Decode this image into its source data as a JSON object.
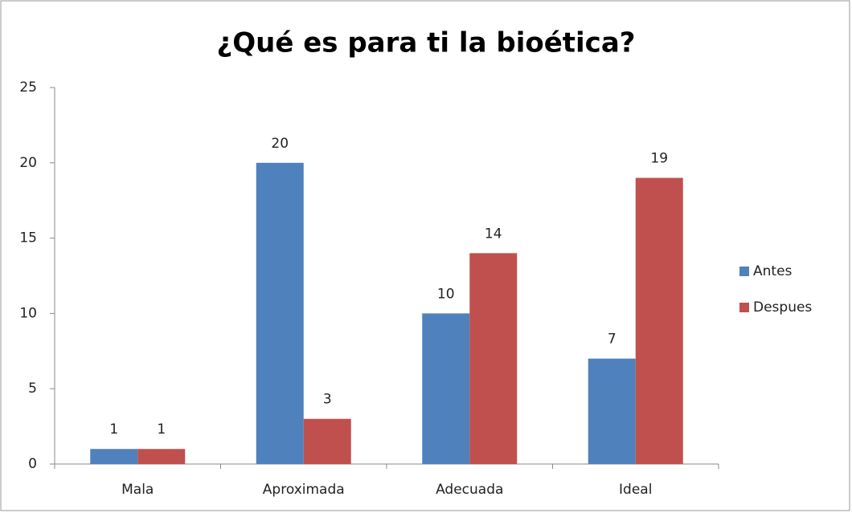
{
  "chart_data": {
    "type": "bar",
    "title": "¿Qué es para ti la bioética?",
    "categories": [
      "Mala",
      "Aproximada",
      "Adecuada",
      "Ideal"
    ],
    "series": [
      {
        "name": "Antes",
        "color": "#4f81bd",
        "values": [
          1,
          20,
          10,
          7
        ]
      },
      {
        "name": "Despues",
        "color": "#c0504d",
        "values": [
          1,
          3,
          14,
          19
        ]
      }
    ],
    "ylim": [
      0,
      25
    ],
    "yticks": [
      0,
      5,
      10,
      15,
      20,
      25
    ],
    "legend": "right"
  }
}
